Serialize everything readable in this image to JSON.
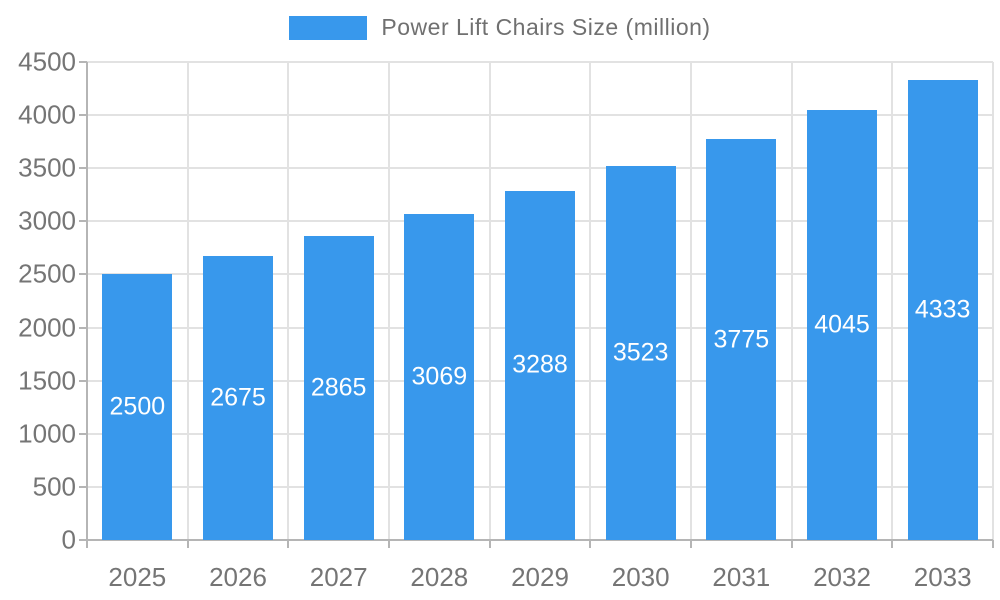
{
  "chart_data": {
    "type": "bar",
    "title": "Power Lift Chairs Size (million)",
    "legend": [
      "Power Lift Chairs Size (million)"
    ],
    "legend_position": "top",
    "categories": [
      "2025",
      "2026",
      "2027",
      "2028",
      "2029",
      "2030",
      "2031",
      "2032",
      "2033"
    ],
    "series": [
      {
        "name": "Power Lift Chairs Size (million)",
        "values": [
          2500,
          2675,
          2865,
          3069,
          3288,
          3523,
          3775,
          4045,
          4333
        ]
      }
    ],
    "data_labels_visible": true,
    "xlabel": "",
    "ylabel": "",
    "ylim": [
      0,
      4500
    ],
    "ytick_step": 500,
    "grid": "horizontal-and-vertical",
    "colors": {
      "bar": "#3898ec",
      "bar_label": "#ffffff",
      "axis_text": "#757575",
      "legend_text": "#707070",
      "gridline": "#e2e2e2",
      "axis_line": "#b5b5b5"
    }
  }
}
